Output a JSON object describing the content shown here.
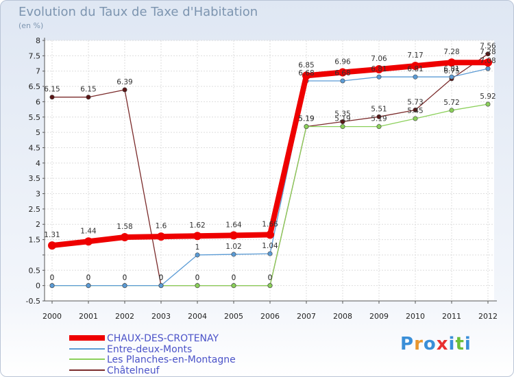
{
  "chart_data": {
    "type": "line",
    "title": "Evolution du Taux de Taxe d'Habitation",
    "subtitle": "(en %)",
    "xlabel": "",
    "ylabel": "",
    "ylim": [
      -0.5,
      8
    ],
    "y_ticks": [
      -0.5,
      0,
      0.5,
      1,
      1.5,
      2,
      2.5,
      3,
      3.5,
      4,
      4.5,
      5,
      5.5,
      6,
      6.5,
      7,
      7.5,
      8
    ],
    "y_tick_labels": [
      "-0.5",
      "0",
      "0.5",
      "",
      "1.5",
      "2",
      "2.5",
      "3",
      "3.5",
      "4",
      "4.5",
      "5",
      "5.5",
      "6",
      "6.5",
      "7",
      "7.5",
      "8"
    ],
    "categories": [
      "2000",
      "2001",
      "2002",
      "2003",
      "2004",
      "2005",
      "2006",
      "2007",
      "2008",
      "2009",
      "2010",
      "2011",
      "2012"
    ],
    "grid": true,
    "legend_position": "bottom-left",
    "series": [
      {
        "name": "CHAUX-DES-CROTENAY",
        "color": "#ee0000",
        "values": [
          1.31,
          1.44,
          1.58,
          1.6,
          1.62,
          1.64,
          1.66,
          6.85,
          6.96,
          7.06,
          7.17,
          7.28,
          7.28
        ],
        "labels": [
          "1.31",
          "1.44",
          "1.58",
          "1.6",
          "1.62",
          "1.64",
          "1.66",
          "6.85",
          "6.96",
          "7.06",
          "7.17",
          "7.28",
          "7.28"
        ],
        "label_pos": "above"
      },
      {
        "name": "Entre-deux-Monts",
        "color": "#5b9bd5",
        "values": [
          0,
          0,
          0,
          0,
          1,
          1.02,
          1.04,
          6.68,
          6.68,
          6.81,
          6.81,
          6.81,
          7.08
        ],
        "labels": [
          "0",
          "0",
          "0",
          "0",
          "1",
          "1.02",
          "1.04",
          "6.68",
          "6.68",
          "6.81",
          "6.81",
          "6.81",
          "7.08"
        ],
        "label_pos": "above"
      },
      {
        "name": "Les Planches-en-Montagne",
        "color": "#8bd05a",
        "values": [
          0,
          0,
          0,
          0,
          0,
          0,
          0,
          5.19,
          5.19,
          5.19,
          5.45,
          5.72,
          5.92
        ],
        "labels": [
          "0",
          "0",
          "0",
          "0",
          "0",
          "0",
          "0",
          "5.19",
          "5.19",
          "5.19",
          "5.45",
          "5.72",
          "5.92"
        ],
        "label_pos": "above"
      },
      {
        "name": "Châtelneuf",
        "color": "#7a2a2a",
        "values": [
          6.15,
          6.15,
          6.39,
          0,
          0,
          0,
          0,
          5.19,
          5.35,
          5.51,
          5.73,
          6.75,
          7.56
        ],
        "labels": [
          "6.15",
          "6.15",
          "6.39",
          "0",
          "0",
          "0",
          "0",
          "5.19",
          "5.35",
          "5.51",
          "5.73",
          "6.75",
          "7.56"
        ],
        "label_pos": "above"
      }
    ]
  },
  "logo": {
    "letters": [
      "P",
      "r",
      "o",
      "x",
      "i",
      "t",
      "i"
    ],
    "colors": [
      "#3a8fd8",
      "#e8962e",
      "#3a8fd8",
      "#e83030",
      "#3a8fd8",
      "#6bbf3a",
      "#3a8fd8"
    ]
  }
}
